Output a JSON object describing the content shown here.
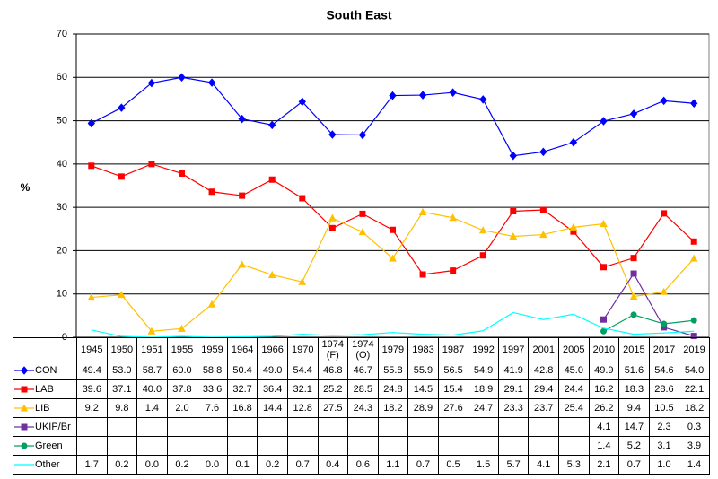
{
  "chart_data": {
    "type": "line",
    "title": "South East",
    "y_label": "%",
    "categories": [
      "1945",
      "1950",
      "1951",
      "1955",
      "1959",
      "1964",
      "1966",
      "1970",
      "1974 (F)",
      "1974 (O)",
      "1979",
      "1983",
      "1987",
      "1992",
      "1997",
      "2001",
      "2005",
      "2010",
      "2015",
      "2017",
      "2019"
    ],
    "ylim": [
      0,
      70
    ],
    "yticks": [
      0,
      10,
      20,
      30,
      40,
      50,
      60,
      70
    ],
    "grid": true,
    "series": [
      {
        "name": "CON",
        "color": "#0000ff",
        "marker": "diamond",
        "values": [
          49.4,
          53.0,
          58.7,
          60.0,
          58.8,
          50.4,
          49.0,
          54.4,
          46.8,
          46.7,
          55.8,
          55.9,
          56.5,
          54.9,
          41.9,
          42.8,
          45.0,
          49.9,
          51.6,
          54.6,
          54.0
        ],
        "value_labels": [
          "49.4",
          "53.0",
          "58.7",
          "60.0",
          "58.8",
          "50.4",
          "49.0",
          "54.4",
          "46.8",
          "46.7",
          "55.8",
          "55.9",
          "56.5",
          "54.9",
          "41.9",
          "42.8",
          "45.0",
          "49.9",
          "51.6",
          "54.6",
          "54.0"
        ]
      },
      {
        "name": "LAB",
        "color": "#ff0000",
        "marker": "square",
        "values": [
          39.6,
          37.1,
          40.0,
          37.8,
          33.6,
          32.7,
          36.4,
          32.1,
          25.2,
          28.5,
          24.8,
          14.5,
          15.4,
          18.9,
          29.1,
          29.4,
          24.4,
          16.2,
          18.3,
          28.6,
          22.1
        ],
        "value_labels": [
          "39.6",
          "37.1",
          "40.0",
          "37.8",
          "33.6",
          "32.7",
          "36.4",
          "32.1",
          "25.2",
          "28.5",
          "24.8",
          "14.5",
          "15.4",
          "18.9",
          "29.1",
          "29.4",
          "24.4",
          "16.2",
          "18.3",
          "28.6",
          "22.1"
        ]
      },
      {
        "name": "LIB",
        "color": "#ffc000",
        "marker": "triangle",
        "values": [
          9.2,
          9.8,
          1.4,
          2.0,
          7.6,
          16.8,
          14.4,
          12.8,
          27.5,
          24.3,
          18.2,
          28.9,
          27.6,
          24.7,
          23.3,
          23.7,
          25.4,
          26.2,
          9.4,
          10.5,
          18.2
        ],
        "value_labels": [
          "9.2",
          "9.8",
          "1.4",
          "2.0",
          "7.6",
          "16.8",
          "14.4",
          "12.8",
          "27.5",
          "24.3",
          "18.2",
          "28.9",
          "27.6",
          "24.7",
          "23.3",
          "23.7",
          "25.4",
          "26.2",
          "9.4",
          "10.5",
          "18.2"
        ]
      },
      {
        "name": "UKIP/Br",
        "color": "#7030a0",
        "marker": "square",
        "values": [
          null,
          null,
          null,
          null,
          null,
          null,
          null,
          null,
          null,
          null,
          null,
          null,
          null,
          null,
          null,
          null,
          null,
          4.1,
          14.7,
          2.3,
          0.3
        ],
        "value_labels": [
          null,
          null,
          null,
          null,
          null,
          null,
          null,
          null,
          null,
          null,
          null,
          null,
          null,
          null,
          null,
          null,
          null,
          "4.1",
          "14.7",
          "2.3",
          "0.3"
        ]
      },
      {
        "name": "Green",
        "color": "#00a060",
        "marker": "circle",
        "values": [
          null,
          null,
          null,
          null,
          null,
          null,
          null,
          null,
          null,
          null,
          null,
          null,
          null,
          null,
          null,
          null,
          null,
          1.4,
          5.2,
          3.1,
          3.9
        ],
        "value_labels": [
          null,
          null,
          null,
          null,
          null,
          null,
          null,
          null,
          null,
          null,
          null,
          null,
          null,
          null,
          null,
          null,
          null,
          "1.4",
          "5.2",
          "3.1",
          "3.9"
        ]
      },
      {
        "name": "Other",
        "color": "#00ffff",
        "marker": "none",
        "values": [
          1.7,
          0.2,
          0.0,
          0.2,
          0.0,
          0.1,
          0.2,
          0.7,
          0.4,
          0.6,
          1.1,
          0.7,
          0.5,
          1.5,
          5.7,
          4.1,
          5.3,
          2.1,
          0.7,
          1.0,
          1.4
        ],
        "value_labels": [
          "1.7",
          "0.2",
          "0.0",
          "0.2",
          "0.0",
          "0.1",
          "0.2",
          "0.7",
          "0.4",
          "0.6",
          "1.1",
          "0.7",
          "0.5",
          "1.5",
          "5.7",
          "4.1",
          "5.3",
          "2.1",
          "0.7",
          "1.0",
          "1.4"
        ]
      }
    ]
  }
}
